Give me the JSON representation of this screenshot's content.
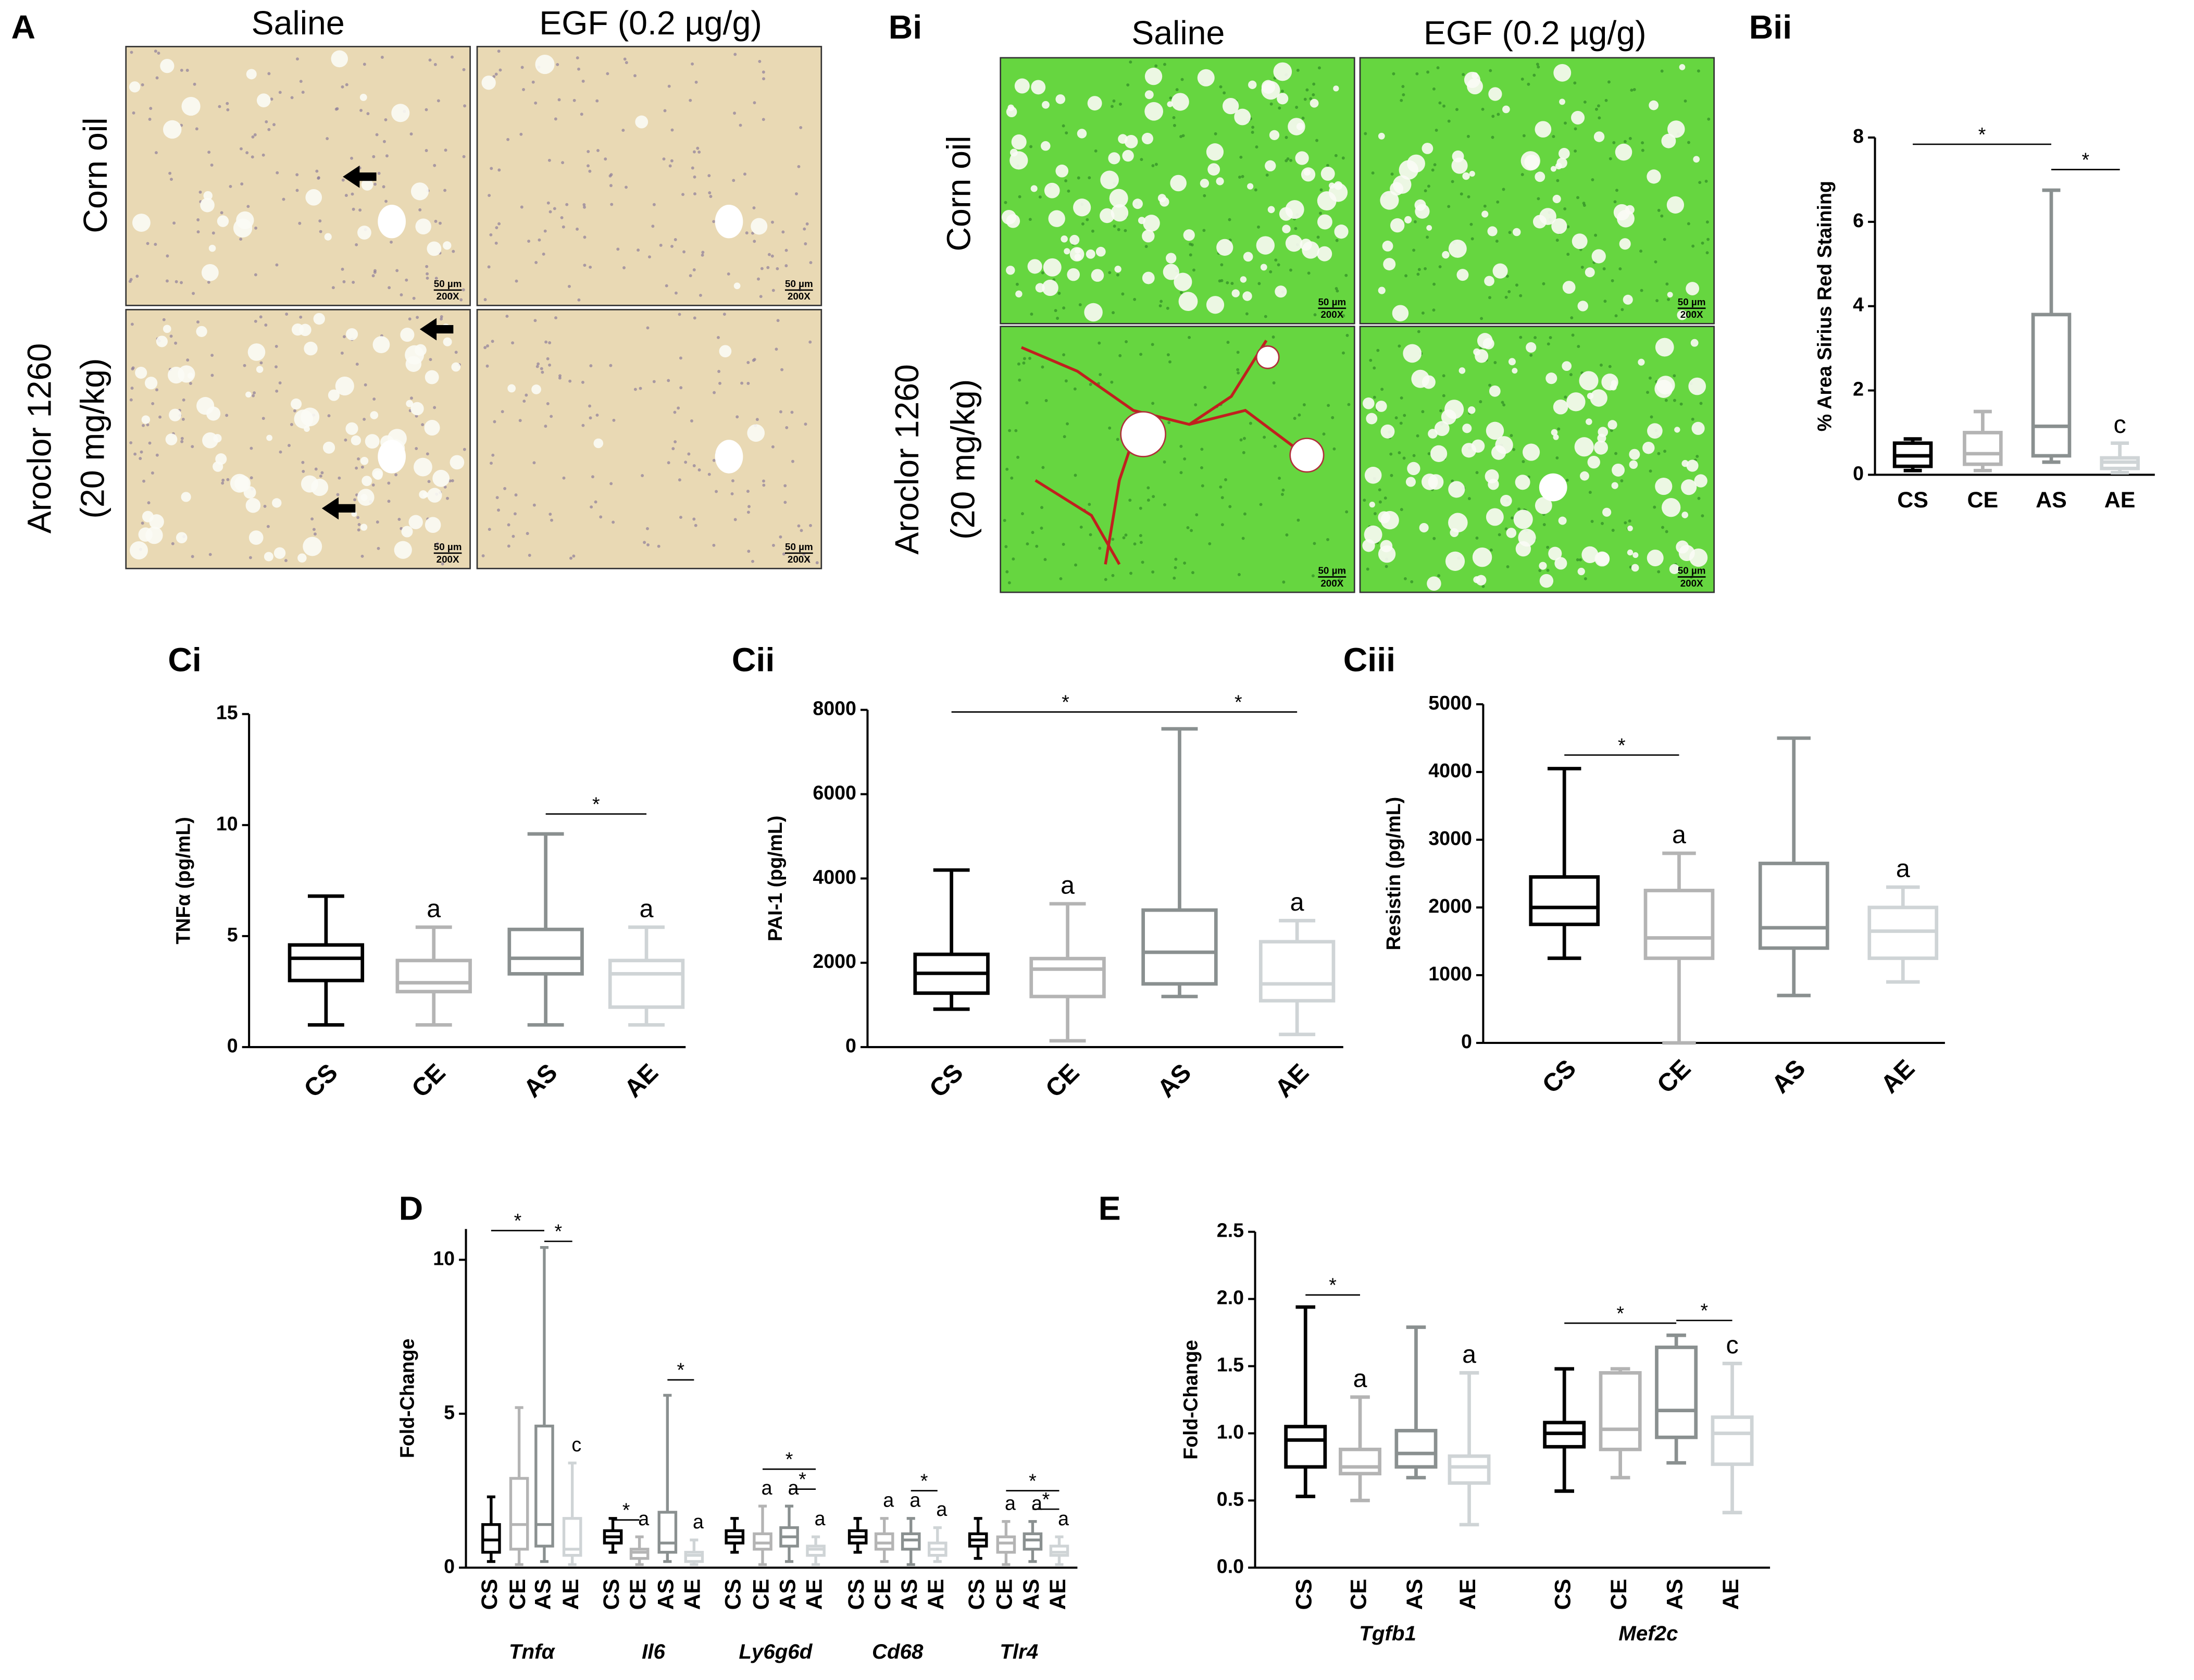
{
  "image_panels": [
    {
      "label": "A",
      "columns": [
        "Saline",
        "EGF (0.2 µg/g)"
      ],
      "rows": [
        [
          "Corn oil"
        ],
        [
          "Aroclor 1260",
          "(20 mg/kg)"
        ]
      ],
      "scale": "50 µm",
      "magnification": "200X"
    },
    {
      "label": "Bi",
      "columns": [
        "Saline",
        "EGF (0.2 µg/g)"
      ],
      "rows": [
        [
          "Corn oil"
        ],
        [
          "Aroclor 1260",
          "(20 mg/kg)"
        ]
      ],
      "scale": "50 µm",
      "magnification": "200X"
    }
  ],
  "chart_data": [
    {
      "type": "box",
      "title": "Bii",
      "ylabel": "% Area Sirius Red Staining",
      "ylim": [
        0,
        8
      ],
      "yticks": [
        0,
        2,
        4,
        6,
        8
      ],
      "colors": [
        "#000000",
        "#b4b4b4",
        "#8a9090",
        "#cfd4d6"
      ],
      "groups": [
        {
          "name": null,
          "categories": [
            "CS",
            "CE",
            "AS",
            "AE"
          ],
          "boxes": [
            {
              "min": 0.1,
              "q1": 0.2,
              "median": 0.45,
              "q3": 0.75,
              "max": 0.85
            },
            {
              "min": 0.1,
              "q1": 0.25,
              "median": 0.5,
              "q3": 1.0,
              "max": 1.5
            },
            {
              "min": 0.3,
              "q1": 0.45,
              "median": 1.15,
              "q3": 3.8,
              "max": 6.75
            },
            {
              "min": 0.05,
              "q1": 0.15,
              "median": 0.3,
              "q3": 0.4,
              "max": 0.75
            }
          ],
          "letters": [
            null,
            null,
            null,
            "c"
          ]
        }
      ],
      "significance": [
        {
          "group": 0,
          "from": 0,
          "to": 2,
          "y": 7.84,
          "label": "*"
        },
        {
          "group": 0,
          "from": 2,
          "to": 3,
          "y": 7.24,
          "label": "*"
        }
      ]
    },
    {
      "type": "box",
      "title": "Ci",
      "ylabel": "TNFα (pg/mL)",
      "ylim": [
        0,
        15
      ],
      "yticks": [
        0,
        5,
        10,
        15
      ],
      "colors": [
        "#000000",
        "#b4b4b4",
        "#8a9090",
        "#cfd4d6"
      ],
      "groups": [
        {
          "name": null,
          "categories": [
            "CS",
            "CE",
            "AS",
            "AE"
          ],
          "boxes": [
            {
              "min": 1,
              "q1": 3,
              "median": 4,
              "q3": 4.6,
              "max": 6.8
            },
            {
              "min": 1,
              "q1": 2.5,
              "median": 2.9,
              "q3": 3.9,
              "max": 5.4
            },
            {
              "min": 1,
              "q1": 3.3,
              "median": 4,
              "q3": 5.3,
              "max": 9.6
            },
            {
              "min": 1,
              "q1": 1.8,
              "median": 3.3,
              "q3": 3.9,
              "max": 5.4
            }
          ],
          "letters": [
            null,
            "a",
            null,
            "a"
          ]
        }
      ],
      "significance": [
        {
          "group": 0,
          "from": 2,
          "to": 3,
          "y": 10.5,
          "label": "*"
        }
      ]
    },
    {
      "type": "box",
      "title": "Cii",
      "ylabel": "PAI-1 (pg/mL)",
      "ylim": [
        0,
        8000
      ],
      "yticks": [
        0,
        2000,
        4000,
        6000,
        8000
      ],
      "colors": [
        "#000000",
        "#b4b4b4",
        "#8a9090",
        "#cfd4d6"
      ],
      "groups": [
        {
          "name": null,
          "categories": [
            "CS",
            "CE",
            "AS",
            "AE"
          ],
          "boxes": [
            {
              "min": 900,
              "q1": 1280,
              "median": 1750,
              "q3": 2200,
              "max": 4200
            },
            {
              "min": 150,
              "q1": 1200,
              "median": 1850,
              "q3": 2100,
              "max": 3400
            },
            {
              "min": 1200,
              "q1": 1500,
              "median": 2250,
              "q3": 3250,
              "max": 7550
            },
            {
              "min": 300,
              "q1": 1100,
              "median": 1500,
              "q3": 2500,
              "max": 3000
            }
          ],
          "letters": [
            null,
            "a",
            null,
            "a"
          ]
        }
      ],
      "significance": [
        {
          "group": 0,
          "from": 0,
          "to": 2,
          "y": 7950,
          "label": "*"
        },
        {
          "group": 0,
          "from": 2,
          "to": 3,
          "y": 7950,
          "label": "*"
        }
      ]
    },
    {
      "type": "box",
      "title": "Ciii",
      "ylabel": "Resistin (pg/mL)",
      "ylim": [
        0,
        5000
      ],
      "yticks": [
        0,
        1000,
        2000,
        3000,
        4000,
        5000
      ],
      "colors": [
        "#000000",
        "#b4b4b4",
        "#8a9090",
        "#cfd4d6"
      ],
      "groups": [
        {
          "name": null,
          "categories": [
            "CS",
            "CE",
            "AS",
            "AE"
          ],
          "boxes": [
            {
              "min": 1250,
              "q1": 1750,
              "median": 2000,
              "q3": 2450,
              "max": 4050
            },
            {
              "min": 0,
              "q1": 1250,
              "median": 1550,
              "q3": 2250,
              "max": 2800
            },
            {
              "min": 700,
              "q1": 1400,
              "median": 1700,
              "q3": 2650,
              "max": 4500
            },
            {
              "min": 900,
              "q1": 1250,
              "median": 1650,
              "q3": 2000,
              "max": 2300
            }
          ],
          "letters": [
            null,
            "a",
            null,
            "a"
          ]
        }
      ],
      "significance": [
        {
          "group": 0,
          "from": 0,
          "to": 1,
          "y": 4250,
          "label": "*"
        }
      ]
    },
    {
      "type": "box",
      "title": "D",
      "ylabel": "Fold-Change",
      "ylim": [
        0,
        11
      ],
      "yticks": [
        0,
        5,
        10
      ],
      "colors": [
        "#000000",
        "#b4b4b4",
        "#8a9090",
        "#cfd4d6"
      ],
      "groups": [
        {
          "name": "Tnfα",
          "categories": [
            "CS",
            "CE",
            "AS",
            "AE"
          ],
          "boxes": [
            {
              "min": 0.2,
              "q1": 0.5,
              "median": 0.9,
              "q3": 1.4,
              "max": 2.3
            },
            {
              "min": 0.1,
              "q1": 0.6,
              "median": 1.4,
              "q3": 2.9,
              "max": 5.2
            },
            {
              "min": 0.2,
              "q1": 0.7,
              "median": 1.4,
              "q3": 4.6,
              "max": 10.4
            },
            {
              "min": 0.1,
              "q1": 0.4,
              "median": 0.6,
              "q3": 1.6,
              "max": 3.4
            }
          ],
          "letters": [
            null,
            null,
            null,
            "c"
          ]
        },
        {
          "name": "Il6",
          "categories": [
            "CS",
            "CE",
            "AS",
            "AE"
          ],
          "boxes": [
            {
              "min": 0.5,
              "q1": 0.8,
              "median": 1.0,
              "q3": 1.2,
              "max": 1.6
            },
            {
              "min": 0.1,
              "q1": 0.3,
              "median": 0.5,
              "q3": 0.6,
              "max": 1.0
            },
            {
              "min": 0.2,
              "q1": 0.5,
              "median": 0.8,
              "q3": 1.8,
              "max": 5.6
            },
            {
              "min": 0.1,
              "q1": 0.2,
              "median": 0.4,
              "q3": 0.5,
              "max": 0.9
            }
          ],
          "letters": [
            null,
            "a",
            null,
            "a"
          ]
        },
        {
          "name": "Ly6g6d",
          "categories": [
            "CS",
            "CE",
            "AS",
            "AE"
          ],
          "boxes": [
            {
              "min": 0.5,
              "q1": 0.8,
              "median": 1.0,
              "q3": 1.2,
              "max": 1.6
            },
            {
              "min": 0.1,
              "q1": 0.6,
              "median": 0.8,
              "q3": 1.1,
              "max": 2.0
            },
            {
              "min": 0.2,
              "q1": 0.7,
              "median": 1.0,
              "q3": 1.3,
              "max": 2.0
            },
            {
              "min": 0.1,
              "q1": 0.4,
              "median": 0.6,
              "q3": 0.7,
              "max": 1.0
            }
          ],
          "letters": [
            null,
            "a",
            "a",
            "a"
          ]
        },
        {
          "name": "Cd68",
          "categories": [
            "CS",
            "CE",
            "AS",
            "AE"
          ],
          "boxes": [
            {
              "min": 0.5,
              "q1": 0.8,
              "median": 1.0,
              "q3": 1.2,
              "max": 1.6
            },
            {
              "min": 0.2,
              "q1": 0.6,
              "median": 0.8,
              "q3": 1.1,
              "max": 1.6
            },
            {
              "min": 0.1,
              "q1": 0.6,
              "median": 0.9,
              "q3": 1.1,
              "max": 1.6
            },
            {
              "min": 0.2,
              "q1": 0.4,
              "median": 0.6,
              "q3": 0.8,
              "max": 1.3
            }
          ],
          "letters": [
            null,
            "a",
            "a",
            "a"
          ]
        },
        {
          "name": "Tlr4",
          "categories": [
            "CS",
            "CE",
            "AS",
            "AE"
          ],
          "boxes": [
            {
              "min": 0.3,
              "q1": 0.7,
              "median": 0.9,
              "q3": 1.1,
              "max": 1.6
            },
            {
              "min": 0.1,
              "q1": 0.5,
              "median": 0.8,
              "q3": 1.0,
              "max": 1.5
            },
            {
              "min": 0.2,
              "q1": 0.6,
              "median": 0.9,
              "q3": 1.1,
              "max": 1.5
            },
            {
              "min": 0.1,
              "q1": 0.4,
              "median": 0.5,
              "q3": 0.7,
              "max": 1.0
            }
          ],
          "letters": [
            null,
            "a",
            "a",
            "a"
          ]
        }
      ],
      "significance": [
        {
          "group": 0,
          "from": 0,
          "to": 2,
          "y": 10.95,
          "label": "*"
        },
        {
          "group": 0,
          "from": 2,
          "to": 3,
          "y": 10.6,
          "label": "*"
        },
        {
          "group": 1,
          "from": 0,
          "to": 1,
          "y": 1.55,
          "label": "*"
        },
        {
          "group": 1,
          "from": 2,
          "to": 3,
          "y": 6.1,
          "label": "*"
        },
        {
          "group": 2,
          "from": 1,
          "to": 3,
          "y": 3.2,
          "label": "*"
        },
        {
          "group": 2,
          "from": 2,
          "to": 3,
          "y": 2.55,
          "label": "*"
        },
        {
          "group": 3,
          "from": 2,
          "to": 3,
          "y": 2.5,
          "label": "*"
        },
        {
          "group": 4,
          "from": 1,
          "to": 3,
          "y": 2.5,
          "label": "*"
        },
        {
          "group": 4,
          "from": 2,
          "to": 3,
          "y": 1.9,
          "label": "*"
        }
      ]
    },
    {
      "type": "box",
      "title": "E",
      "ylabel": "Fold-Change",
      "ylim": [
        0,
        2.5
      ],
      "yticks": [
        {
          "value": 0,
          "label": "0.0"
        },
        0.5,
        {
          "value": 1,
          "label": "1.0"
        },
        1.5,
        {
          "value": 2,
          "label": "2.0"
        },
        2.5
      ],
      "colors": [
        "#000000",
        "#b4b4b4",
        "#8a9090",
        "#cfd4d6"
      ],
      "groups": [
        {
          "name": "Tgfb1",
          "categories": [
            "CS",
            "CE",
            "AS",
            "AE"
          ],
          "boxes": [
            {
              "min": 0.53,
              "q1": 0.75,
              "median": 0.95,
              "q3": 1.05,
              "max": 1.94
            },
            {
              "min": 0.5,
              "q1": 0.7,
              "median": 0.75,
              "q3": 0.88,
              "max": 1.27
            },
            {
              "min": 0.67,
              "q1": 0.75,
              "median": 0.85,
              "q3": 1.02,
              "max": 1.79
            },
            {
              "min": 0.32,
              "q1": 0.63,
              "median": 0.75,
              "q3": 0.83,
              "max": 1.45
            }
          ],
          "letters": [
            null,
            "a",
            null,
            "a"
          ]
        },
        {
          "name": "Mef2c",
          "categories": [
            "CS",
            "CE",
            "AS",
            "AE"
          ],
          "boxes": [
            {
              "min": 0.57,
              "q1": 0.9,
              "median": 1.0,
              "q3": 1.08,
              "max": 1.48
            },
            {
              "min": 0.67,
              "q1": 0.88,
              "median": 1.03,
              "q3": 1.45,
              "max": 1.48
            },
            {
              "min": 0.78,
              "q1": 0.97,
              "median": 1.17,
              "q3": 1.64,
              "max": 1.73
            },
            {
              "min": 0.41,
              "q1": 0.77,
              "median": 1.0,
              "q3": 1.12,
              "max": 1.52
            }
          ],
          "letters": [
            null,
            null,
            null,
            "c"
          ]
        }
      ],
      "significance": [
        {
          "group": 0,
          "from": 0,
          "to": 1,
          "y": 2.03,
          "label": "*"
        },
        {
          "group": 1,
          "from": 0,
          "to": 2,
          "y": 1.82,
          "label": "*"
        },
        {
          "group": 1,
          "from": 2,
          "to": 3,
          "y": 1.84,
          "label": "*"
        }
      ]
    }
  ]
}
